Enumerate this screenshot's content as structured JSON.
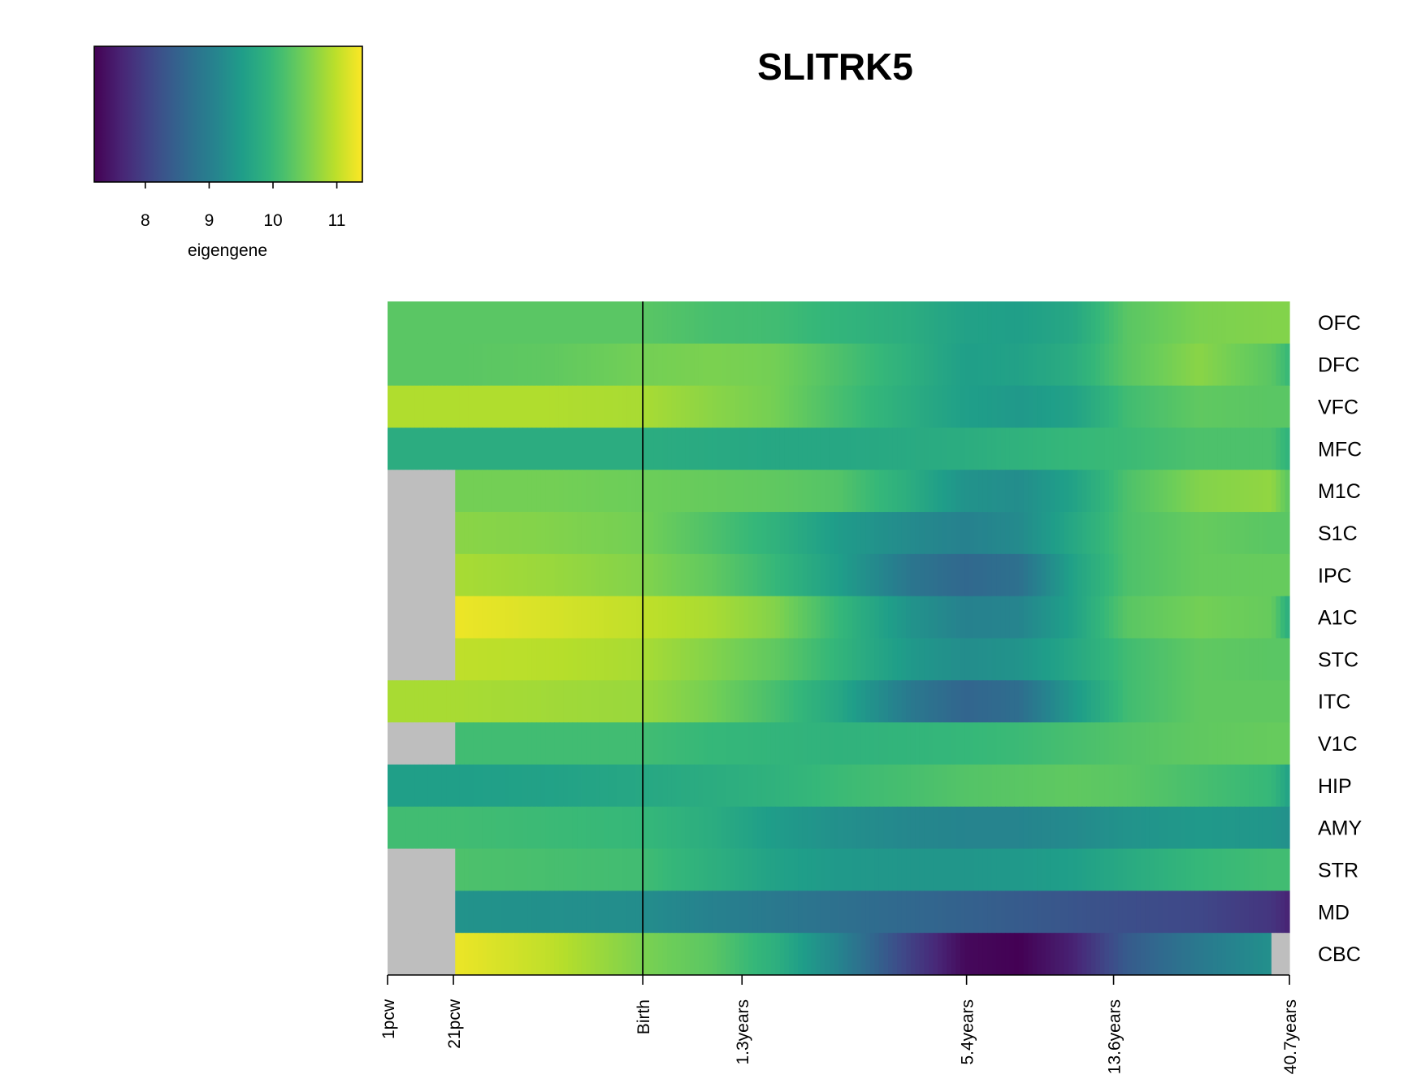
{
  "chart_data": {
    "type": "heatmap",
    "title": "SLITRK5",
    "colorbar": {
      "label": "eigengene",
      "ticks": [
        8,
        9,
        10,
        11
      ],
      "range": [
        7.2,
        11.4
      ],
      "colormap": "viridis"
    },
    "rows": [
      "OFC",
      "DFC",
      "VFC",
      "MFC",
      "M1C",
      "S1C",
      "IPC",
      "A1C",
      "STC",
      "ITC",
      "V1C",
      "HIP",
      "AMY",
      "STR",
      "MD",
      "CBC"
    ],
    "x_ticks": [
      "1pcw",
      "21pcw",
      "Birth",
      "1.3years",
      "5.4years",
      "13.6years",
      "40.7years"
    ],
    "x_tick_positions": [
      0,
      0.073,
      0.283,
      0.393,
      0.642,
      0.805,
      1.0
    ],
    "birth_line_position": 0.283,
    "profile_points": [
      0,
      0.073,
      0.18,
      0.283,
      0.36,
      0.43,
      0.5,
      0.58,
      0.64,
      0.7,
      0.76,
      0.82,
      0.9,
      0.98,
      1.0
    ],
    "values": {
      "OFC": [
        10.3,
        10.3,
        10.3,
        10.3,
        10.15,
        10.1,
        9.95,
        9.8,
        9.6,
        9.55,
        9.7,
        10.3,
        10.55,
        10.6,
        10.6
      ],
      "DFC": [
        10.3,
        10.3,
        10.35,
        10.5,
        10.55,
        10.5,
        10.2,
        9.85,
        9.55,
        9.6,
        9.8,
        10.3,
        10.65,
        10.3,
        10.0
      ],
      "VFC": [
        10.9,
        10.9,
        10.9,
        10.85,
        10.65,
        10.5,
        10.15,
        9.8,
        9.55,
        9.45,
        9.6,
        10.1,
        10.35,
        10.3,
        10.3
      ],
      "MFC": [
        9.8,
        9.8,
        9.8,
        9.8,
        9.75,
        9.7,
        9.7,
        9.75,
        9.8,
        9.9,
        10.0,
        10.05,
        10.2,
        10.2,
        9.9
      ],
      "M1C": [
        null,
        10.5,
        10.5,
        10.45,
        10.4,
        10.35,
        10.25,
        9.8,
        9.35,
        9.25,
        9.6,
        10.2,
        10.6,
        10.7,
        10.3
      ],
      "S1C": [
        null,
        10.65,
        10.6,
        10.5,
        10.2,
        9.9,
        9.5,
        9.2,
        9.05,
        9.2,
        9.7,
        10.2,
        10.4,
        10.3,
        10.3
      ],
      "IPC": [
        null,
        10.85,
        10.75,
        10.6,
        10.35,
        10.0,
        9.55,
        8.85,
        8.6,
        8.75,
        9.6,
        10.2,
        10.4,
        10.4,
        10.4
      ],
      "A1C": [
        null,
        11.3,
        11.15,
        11.0,
        10.85,
        10.6,
        10.0,
        9.35,
        9.05,
        9.1,
        9.6,
        10.3,
        10.5,
        10.4,
        9.8
      ],
      "STC": [
        null,
        11.0,
        10.95,
        10.85,
        10.6,
        10.35,
        9.95,
        9.45,
        9.25,
        9.35,
        9.7,
        10.1,
        10.35,
        10.3,
        10.3
      ],
      "ITC": [
        10.85,
        10.85,
        10.8,
        10.75,
        10.5,
        10.15,
        9.7,
        8.9,
        8.55,
        8.7,
        9.45,
        10.1,
        10.35,
        10.35,
        10.35
      ],
      "V1C": [
        null,
        10.1,
        10.1,
        10.1,
        10.0,
        9.95,
        9.9,
        9.95,
        10.0,
        10.05,
        10.15,
        10.25,
        10.35,
        10.4,
        10.4
      ],
      "HIP": [
        9.55,
        9.55,
        9.6,
        9.7,
        9.8,
        9.9,
        10.05,
        10.15,
        10.25,
        10.3,
        10.35,
        10.3,
        10.15,
        10.0,
        9.6
      ],
      "AMY": [
        10.1,
        10.1,
        10.05,
        10.0,
        9.8,
        9.5,
        9.3,
        9.15,
        9.1,
        9.1,
        9.2,
        9.35,
        9.45,
        9.4,
        9.3
      ],
      "STR": [
        null,
        10.2,
        10.15,
        10.1,
        9.85,
        9.6,
        9.45,
        9.4,
        9.4,
        9.45,
        9.55,
        9.75,
        10.0,
        10.1,
        10.1
      ],
      "MD": [
        null,
        9.35,
        9.3,
        9.25,
        9.05,
        8.9,
        8.75,
        8.6,
        8.5,
        8.4,
        8.3,
        8.2,
        8.1,
        7.85,
        7.6
      ],
      "CBC": [
        null,
        11.3,
        11.0,
        10.55,
        10.3,
        9.85,
        9.1,
        8.0,
        7.3,
        7.2,
        7.6,
        8.4,
        8.9,
        9.3,
        null
      ]
    },
    "missing_value_color": "#bebebe"
  }
}
